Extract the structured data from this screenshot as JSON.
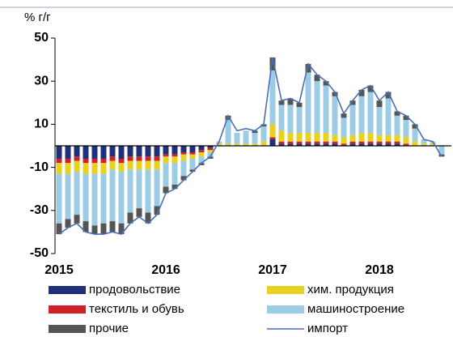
{
  "chart_data": {
    "type": "stacked-bar-line",
    "y_label": "% г/г",
    "categories": [
      "2015",
      null,
      null,
      null,
      null,
      null,
      null,
      null,
      null,
      null,
      null,
      null,
      "2016",
      null,
      null,
      null,
      null,
      null,
      null,
      null,
      null,
      null,
      null,
      null,
      "2017",
      null,
      null,
      null,
      null,
      null,
      null,
      null,
      null,
      null,
      null,
      null,
      "2018",
      null,
      null,
      null,
      null,
      null,
      null,
      null
    ],
    "ylim": [
      -50,
      50
    ],
    "yticks": [
      -50,
      -30,
      -10,
      10,
      30,
      50
    ],
    "series": [
      {
        "name": "продовольствие",
        "color": "#1f2f7a",
        "values": [
          -6,
          -6,
          -5,
          -6,
          -6,
          -6,
          -5,
          -6,
          -5,
          -5,
          -5,
          -5,
          -4,
          -4,
          -3,
          -3,
          -2,
          -1,
          0,
          0,
          0,
          0,
          0,
          0,
          3,
          1,
          1,
          1,
          1,
          1,
          1,
          1,
          0,
          1,
          1,
          1,
          1,
          1,
          1,
          0,
          0,
          0,
          0,
          0
        ]
      },
      {
        "name": "текстиль и обувь",
        "color": "#d0202a",
        "values": [
          -2,
          -2,
          -2,
          -2,
          -2,
          -2,
          -2,
          -2,
          -2,
          -2,
          -2,
          -2,
          -1,
          -1,
          -1,
          -1,
          -1,
          -1,
          0,
          0,
          0,
          0,
          0,
          0,
          1,
          1,
          1,
          1,
          1,
          1,
          1,
          1,
          1,
          1,
          1,
          1,
          1,
          1,
          1,
          1,
          0,
          0,
          0,
          0
        ]
      },
      {
        "name": "хим. продукция",
        "color": "#e8d21e",
        "values": [
          -5,
          -5,
          -5,
          -5,
          -5,
          -5,
          -4,
          -4,
          -4,
          -4,
          -4,
          -4,
          -3,
          -3,
          -3,
          -2,
          -2,
          -1,
          1,
          1,
          1,
          1,
          1,
          2,
          6,
          5,
          4,
          4,
          4,
          4,
          4,
          3,
          3,
          3,
          4,
          4,
          3,
          3,
          3,
          3,
          2,
          1,
          1,
          0
        ]
      },
      {
        "name": "машиностроение",
        "color": "#9ccbe6",
        "values": [
          -23,
          -21,
          -20,
          -22,
          -24,
          -23,
          -24,
          -24,
          -20,
          -18,
          -20,
          -17,
          -11,
          -10,
          -7,
          -5,
          -3,
          -2,
          1,
          11,
          5,
          6,
          5,
          7,
          25,
          12,
          13,
          12,
          28,
          24,
          22,
          18,
          9,
          14,
          17,
          19,
          13,
          17,
          9,
          8,
          6,
          2,
          1,
          -4
        ]
      },
      {
        "name": "прочие",
        "color": "#555555",
        "values": [
          -5,
          -4,
          -4,
          -5,
          -4,
          -5,
          -5,
          -5,
          -5,
          -4,
          -5,
          -4,
          -3,
          -2,
          -2,
          -1,
          -1,
          -1,
          0,
          2,
          0,
          0,
          1,
          1,
          6,
          2,
          3,
          2,
          4,
          3,
          2,
          2,
          2,
          2,
          3,
          3,
          3,
          3,
          2,
          2,
          2,
          0,
          0,
          -1
        ]
      }
    ],
    "line": {
      "name": "импорт",
      "color": "#4a6fb5",
      "values": [
        -41,
        -38,
        -36,
        -40,
        -41,
        -41,
        -40,
        -41,
        -36,
        -33,
        -36,
        -32,
        -22,
        -20,
        -16,
        -12,
        -8,
        -5,
        2,
        14,
        7,
        8,
        7,
        10,
        41,
        21,
        22,
        20,
        38,
        33,
        30,
        25,
        15,
        21,
        26,
        28,
        21,
        25,
        16,
        14,
        10,
        3,
        2,
        -5
      ]
    }
  }
}
